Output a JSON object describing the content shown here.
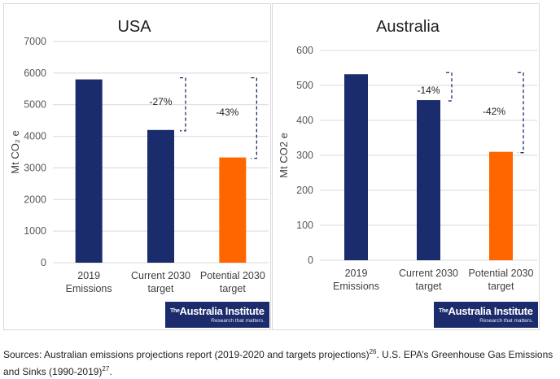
{
  "chart_data": [
    {
      "type": "bar",
      "title": "USA",
      "ylabel": "Mt CO₂ e",
      "ylim": [
        0,
        7000
      ],
      "yticks": [
        0,
        1000,
        2000,
        3000,
        4000,
        5000,
        6000,
        7000
      ],
      "categories": [
        [
          "2019",
          "Emissions"
        ],
        [
          "Current 2030",
          "target"
        ],
        [
          "Potential 2030",
          "target"
        ]
      ],
      "values": [
        5800,
        4200,
        3330
      ],
      "colors": [
        "#1a2c6b",
        "#1a2c6b",
        "#ff6600"
      ],
      "annotations": [
        {
          "label": "-27%",
          "from": 0,
          "to": 1
        },
        {
          "label": "-43%",
          "from": 0,
          "to": 2
        }
      ],
      "grid": true
    },
    {
      "type": "bar",
      "title": "Australia",
      "ylabel": "Mt CO2 e",
      "ylim": [
        0,
        600
      ],
      "yticks": [
        0,
        100,
        200,
        300,
        400,
        500,
        600
      ],
      "categories": [
        [
          "2019",
          "Emissions"
        ],
        [
          "Current 2030",
          "target"
        ],
        [
          "Potential 2030",
          "target"
        ]
      ],
      "values": [
        532,
        458,
        310
      ],
      "colors": [
        "#1a2c6b",
        "#1a2c6b",
        "#ff6600"
      ],
      "annotations": [
        {
          "label": "-14%",
          "from": 0,
          "to": 1
        },
        {
          "label": "-42%",
          "from": 0,
          "to": 2
        }
      ],
      "grid": true
    }
  ],
  "logo": {
    "the": "The",
    "name": "Australia Institute",
    "tagline": "Research that matters."
  },
  "source": {
    "text1": "Sources: Australian emissions projections report (2019-2020 and targets projections)",
    "ref1": "26",
    "text2": ". U.S. EPA’s Greenhouse Gas Emissions and Sinks (1990-2019)",
    "ref2": "27",
    "text3": "."
  }
}
